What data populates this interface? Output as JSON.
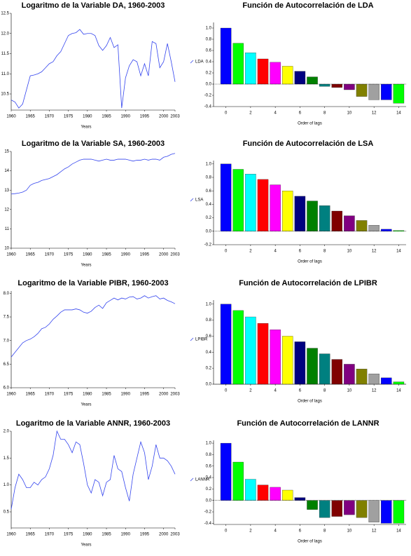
{
  "chart_data": [
    {
      "type": "line",
      "title": "Logaritmo de la Variable DA, 1960-2003",
      "xlabel": "Years",
      "x": [
        1960,
        1961,
        1962,
        1963,
        1964,
        1965,
        1966,
        1967,
        1968,
        1969,
        1970,
        1971,
        1972,
        1973,
        1974,
        1975,
        1976,
        1977,
        1978,
        1979,
        1980,
        1981,
        1982,
        1983,
        1984,
        1985,
        1986,
        1987,
        1988,
        1989,
        1990,
        1991,
        1992,
        1993,
        1994,
        1995,
        1996,
        1997,
        1998,
        1999,
        2000,
        2001,
        2002,
        2003
      ],
      "series": [
        {
          "name": "LDA",
          "color": "#3344ee",
          "values": [
            10.35,
            10.3,
            10.15,
            10.25,
            10.6,
            10.95,
            10.97,
            11.0,
            11.05,
            11.15,
            11.25,
            11.3,
            11.45,
            11.55,
            11.75,
            11.95,
            12.0,
            12.02,
            12.1,
            11.98,
            12.0,
            12.0,
            11.95,
            11.7,
            11.58,
            11.7,
            11.9,
            11.65,
            11.72,
            10.15,
            10.9,
            11.2,
            11.35,
            11.3,
            10.95,
            11.25,
            10.95,
            11.8,
            11.75,
            11.15,
            11.3,
            11.75,
            11.3,
            10.8
          ]
        }
      ],
      "xlim": [
        1960,
        2003
      ],
      "xticks": [
        1960,
        1965,
        1970,
        1975,
        1980,
        1985,
        1990,
        1995,
        2000,
        2003
      ],
      "ylim": [
        10.1,
        12.5
      ],
      "yticks": [
        10.5,
        {
          "value": 11,
          "label": "11.0"
        },
        11.5,
        {
          "value": 12,
          "label": "12.0"
        },
        12.5
      ]
    },
    {
      "type": "bar",
      "title": "Función de Autocorrelación de LDA",
      "xlabel": "Order of lags",
      "x": [
        0,
        1,
        2,
        3,
        4,
        5,
        6,
        7,
        8,
        9,
        10,
        11,
        12,
        13,
        14
      ],
      "values": [
        1.0,
        0.73,
        0.56,
        0.45,
        0.39,
        0.32,
        0.23,
        0.13,
        -0.04,
        -0.06,
        -0.1,
        -0.22,
        -0.28,
        -0.28,
        -0.34
      ],
      "colors": [
        "#0000ff",
        "#00ff00",
        "#00ffff",
        "#ff0000",
        "#ff00ff",
        "#ffff00",
        "#000080",
        "#008000",
        "#008080",
        "#800000",
        "#800080",
        "#808000",
        "#a0a0a0",
        "#0000ff",
        "#00ff00"
      ],
      "xlim": [
        -1,
        14.6
      ],
      "xticks": [
        0,
        2,
        4,
        6,
        8,
        10,
        12,
        14
      ],
      "ylim": [
        -0.4,
        1.1
      ],
      "yticks": [
        -0.4,
        -0.2,
        {
          "value": 0,
          "label": "0.0"
        },
        0.2,
        0.4,
        0.6,
        0.8,
        {
          "value": 1,
          "label": "1.0"
        }
      ]
    },
    {
      "type": "line",
      "title": "Logaritmo de la Variable SA, 1960-2003",
      "xlabel": "Years",
      "x": [
        1960,
        1961,
        1962,
        1963,
        1964,
        1965,
        1966,
        1967,
        1968,
        1969,
        1970,
        1971,
        1972,
        1973,
        1974,
        1975,
        1976,
        1977,
        1978,
        1979,
        1980,
        1981,
        1982,
        1983,
        1984,
        1985,
        1986,
        1987,
        1988,
        1989,
        1990,
        1991,
        1992,
        1993,
        1994,
        1995,
        1996,
        1997,
        1998,
        1999,
        2000,
        2001,
        2002,
        2003
      ],
      "series": [
        {
          "name": "LSA",
          "color": "#3344ee",
          "values": [
            12.8,
            12.82,
            12.85,
            12.9,
            13.0,
            13.25,
            13.35,
            13.4,
            13.5,
            13.55,
            13.6,
            13.7,
            13.8,
            13.95,
            14.1,
            14.2,
            14.35,
            14.45,
            14.55,
            14.6,
            14.6,
            14.6,
            14.55,
            14.5,
            14.55,
            14.6,
            14.55,
            14.55,
            14.6,
            14.6,
            14.6,
            14.55,
            14.5,
            14.55,
            14.55,
            14.6,
            14.55,
            14.6,
            14.6,
            14.55,
            14.7,
            14.75,
            14.85,
            14.9
          ]
        }
      ],
      "xlim": [
        1960,
        2003
      ],
      "xticks": [
        1960,
        1965,
        1970,
        1975,
        1980,
        1985,
        1990,
        1995,
        2000,
        2003
      ],
      "ylim": [
        10,
        15
      ],
      "yticks": [
        10,
        11,
        12,
        13,
        14,
        15
      ]
    },
    {
      "type": "bar",
      "title": "Función de Autocorrelación de LSA",
      "xlabel": "Order of lags",
      "x": [
        0,
        1,
        2,
        3,
        4,
        5,
        6,
        7,
        8,
        9,
        10,
        11,
        12,
        13,
        14
      ],
      "values": [
        1.0,
        0.92,
        0.85,
        0.77,
        0.69,
        0.6,
        0.52,
        0.45,
        0.38,
        0.3,
        0.23,
        0.16,
        0.09,
        0.03,
        0.01
      ],
      "colors": [
        "#0000ff",
        "#00ff00",
        "#00ffff",
        "#ff0000",
        "#ff00ff",
        "#ffff00",
        "#000080",
        "#008000",
        "#008080",
        "#800000",
        "#800080",
        "#808000",
        "#a0a0a0",
        "#0000ff",
        "#00ff00"
      ],
      "xlim": [
        -1,
        14.6
      ],
      "xticks": [
        0,
        2,
        4,
        6,
        8,
        10,
        12,
        14
      ],
      "ylim": [
        -0.2,
        1.05
      ],
      "yticks": [
        -0.2,
        {
          "value": 0,
          "label": "0.0"
        },
        0.2,
        0.4,
        0.6,
        0.8,
        {
          "value": 1,
          "label": "1.0"
        }
      ]
    },
    {
      "type": "line",
      "title": "Logaritmo de la Variable PIBR, 1960-2003",
      "xlabel": "Years",
      "x": [
        1960,
        1961,
        1962,
        1963,
        1964,
        1965,
        1966,
        1967,
        1968,
        1969,
        1970,
        1971,
        1972,
        1973,
        1974,
        1975,
        1976,
        1977,
        1978,
        1979,
        1980,
        1981,
        1982,
        1983,
        1984,
        1985,
        1986,
        1987,
        1988,
        1989,
        1990,
        1991,
        1992,
        1993,
        1994,
        1995,
        1996,
        1997,
        1998,
        1999,
        2000,
        2001,
        2002,
        2003
      ],
      "series": [
        {
          "name": "LPIBR",
          "color": "#3344ee",
          "values": [
            6.65,
            6.75,
            6.85,
            6.95,
            7.0,
            7.03,
            7.08,
            7.15,
            7.25,
            7.28,
            7.35,
            7.45,
            7.52,
            7.6,
            7.65,
            7.65,
            7.65,
            7.67,
            7.65,
            7.6,
            7.58,
            7.62,
            7.7,
            7.75,
            7.68,
            7.8,
            7.85,
            7.9,
            7.86,
            7.9,
            7.88,
            7.92,
            7.93,
            7.88,
            7.9,
            7.95,
            7.9,
            7.93,
            7.95,
            7.88,
            7.9,
            7.85,
            7.82,
            7.78
          ]
        }
      ],
      "xlim": [
        1960,
        2003
      ],
      "xticks": [
        1960,
        1965,
        1970,
        1975,
        1980,
        1985,
        1990,
        1995,
        2000,
        2003
      ],
      "ylim": [
        6,
        8.05
      ],
      "yticks": [
        {
          "value": 6,
          "label": "6.0"
        },
        6.5,
        {
          "value": 7,
          "label": "7.0"
        },
        7.5,
        {
          "value": 8,
          "label": "8.0"
        }
      ]
    },
    {
      "type": "bar",
      "title": "Función de Autocorrelación de LPIBR",
      "xlabel": "Order of lags",
      "x": [
        0,
        1,
        2,
        3,
        4,
        5,
        6,
        7,
        8,
        9,
        10,
        11,
        12,
        13,
        14
      ],
      "values": [
        1.0,
        0.92,
        0.84,
        0.76,
        0.68,
        0.6,
        0.53,
        0.45,
        0.38,
        0.31,
        0.25,
        0.19,
        0.13,
        0.08,
        0.03
      ],
      "colors": [
        "#0000ff",
        "#00ff00",
        "#00ffff",
        "#ff0000",
        "#ff00ff",
        "#ffff00",
        "#000080",
        "#008000",
        "#008080",
        "#800000",
        "#800080",
        "#808000",
        "#a0a0a0",
        "#0000ff",
        "#00ff00"
      ],
      "xlim": [
        -1,
        14.6
      ],
      "xticks": [
        0,
        2,
        4,
        6,
        8,
        10,
        12,
        14
      ],
      "ylim": [
        0,
        1.05
      ],
      "yticks": [
        {
          "value": 0,
          "label": "0.0"
        },
        0.2,
        0.4,
        0.6,
        0.8,
        {
          "value": 1,
          "label": "1.0"
        }
      ]
    },
    {
      "type": "line",
      "title": "Logaritmo de la Variable ANNR, 1960-2003",
      "xlabel": "Years",
      "x": [
        1960,
        1961,
        1962,
        1963,
        1964,
        1965,
        1966,
        1967,
        1968,
        1969,
        1970,
        1971,
        1972,
        1973,
        1974,
        1975,
        1976,
        1977,
        1978,
        1979,
        1980,
        1981,
        1982,
        1983,
        1984,
        1985,
        1986,
        1987,
        1988,
        1989,
        1990,
        1991,
        1992,
        1993,
        1994,
        1995,
        1996,
        1997,
        1998,
        1999,
        2000,
        2001,
        2002,
        2003
      ],
      "series": [
        {
          "name": "LANNR",
          "color": "#3344ee",
          "values": [
            0.55,
            0.95,
            1.2,
            1.1,
            0.95,
            0.95,
            1.05,
            1.0,
            1.1,
            1.15,
            1.3,
            1.55,
            2.0,
            1.85,
            1.85,
            1.75,
            1.6,
            1.8,
            1.75,
            1.4,
            1.0,
            0.85,
            1.1,
            1.05,
            0.8,
            1.05,
            1.1,
            1.55,
            1.3,
            1.25,
            0.95,
            0.7,
            1.2,
            1.5,
            1.8,
            1.6,
            1.1,
            1.35,
            1.75,
            1.5,
            1.5,
            1.45,
            1.35,
            1.2
          ]
        }
      ],
      "xlim": [
        1960,
        2003
      ],
      "xticks": [
        1960,
        1965,
        1970,
        1975,
        1980,
        1985,
        1990,
        1995,
        2000,
        2003
      ],
      "ylim": [
        0.2,
        2.0
      ],
      "yticks": [
        0.5,
        {
          "value": 1,
          "label": "1.0"
        },
        1.5,
        {
          "value": 2,
          "label": "2.0"
        }
      ]
    },
    {
      "type": "bar",
      "title": "Función de Autocorrelación de LANNR",
      "xlabel": "Order of lags",
      "x": [
        0,
        1,
        2,
        3,
        4,
        5,
        6,
        7,
        8,
        9,
        10,
        11,
        12,
        13,
        14
      ],
      "values": [
        1.0,
        0.67,
        0.37,
        0.27,
        0.23,
        0.18,
        0.05,
        -0.16,
        -0.3,
        -0.28,
        -0.25,
        -0.3,
        -0.38,
        -0.4,
        -0.4
      ],
      "colors": [
        "#0000ff",
        "#00ff00",
        "#00ffff",
        "#ff0000",
        "#ff00ff",
        "#ffff00",
        "#000080",
        "#008000",
        "#008080",
        "#800000",
        "#800080",
        "#808000",
        "#a0a0a0",
        "#0000ff",
        "#00ff00"
      ],
      "xlim": [
        -1,
        14.6
      ],
      "xticks": [
        0,
        2,
        4,
        6,
        8,
        10,
        12,
        14
      ],
      "ylim": [
        -0.42,
        1.05
      ],
      "yticks": [
        -0.4,
        -0.2,
        {
          "value": 0,
          "label": "0.0"
        },
        0.2,
        0.4,
        0.6,
        0.8,
        {
          "value": 1,
          "label": "1.0"
        }
      ]
    }
  ]
}
